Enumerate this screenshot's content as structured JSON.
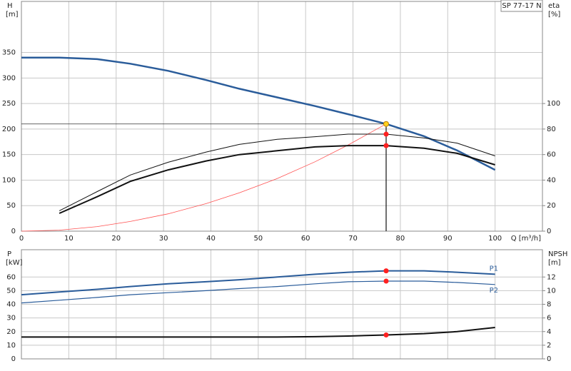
{
  "chart_data": [
    {
      "type": "line",
      "model": "SP 77-17 N",
      "y_label": "H",
      "y_unit": "[m]",
      "y2_label": "eta",
      "y2_unit": "[%]",
      "x_label": "Q [m³/h]",
      "xlim": [
        0,
        110
      ],
      "xticks": [
        0,
        10,
        20,
        30,
        40,
        50,
        60,
        70,
        80,
        90,
        100
      ],
      "xtick_labels": true,
      "ylim": [
        0,
        450
      ],
      "yticks": [
        0,
        50,
        100,
        150,
        200,
        250,
        300,
        350
      ],
      "y2lim": [
        0,
        180
      ],
      "y2ticks": [
        0,
        20,
        40,
        60,
        80,
        100
      ],
      "grid": true,
      "highlight_x": 77,
      "series": [
        {
          "color": "#2a5c9a",
          "width": 2.5,
          "axis": "y",
          "marker": "#ffd21f",
          "guides": true,
          "x": [
            0,
            8,
            16,
            23,
            31,
            39,
            46,
            54,
            62,
            69,
            77,
            85,
            92,
            100
          ],
          "values": [
            340,
            340,
            337,
            328,
            314,
            296,
            279,
            262,
            245,
            229,
            210,
            186,
            158,
            120
          ]
        },
        {
          "color": "#ff5050",
          "width": 0.8,
          "axis": "y",
          "x": [
            0,
            8,
            16,
            23,
            31,
            39,
            46,
            54,
            62,
            69,
            77
          ],
          "values": [
            0,
            2,
            9,
            19,
            34,
            54,
            75,
            103,
            136,
            169,
            210
          ]
        },
        {
          "color": "#111111",
          "width": 1,
          "axis": "y2",
          "marker": "#ff2020",
          "x": [
            8,
            16,
            23,
            31,
            39,
            46,
            54,
            62,
            69,
            77,
            85,
            92,
            100
          ],
          "values": [
            16,
            31,
            44,
            54,
            62,
            68,
            72,
            74,
            76,
            76,
            73,
            69,
            59
          ]
        },
        {
          "color": "#111111",
          "width": 2,
          "axis": "y2",
          "marker": "#ff2020",
          "x": [
            8,
            16,
            23,
            31,
            39,
            46,
            54,
            62,
            69,
            77,
            85,
            92,
            100
          ],
          "values": [
            14,
            27,
            39,
            48,
            55,
            60,
            63,
            66,
            67,
            67,
            65,
            61,
            52
          ]
        }
      ]
    },
    {
      "type": "line",
      "y_label": "P",
      "y_unit": "[kW]",
      "y2_label": "NPSH",
      "y2_unit": "[m]",
      "xlim": [
        0,
        110
      ],
      "xticks": [
        0,
        10,
        20,
        30,
        40,
        50,
        60,
        70,
        80,
        90,
        100
      ],
      "xtick_labels": false,
      "ylim": [
        0,
        80
      ],
      "yticks": [
        0,
        10,
        20,
        30,
        40,
        50,
        60
      ],
      "y2lim": [
        0,
        16
      ],
      "y2ticks": [
        0,
        2,
        4,
        6,
        8,
        10,
        12
      ],
      "grid": true,
      "highlight_x": 77,
      "series": [
        {
          "name": "P1",
          "color": "#2a5c9a",
          "width": 2,
          "axis": "y",
          "marker": "#ff2020",
          "x": [
            0,
            8,
            16,
            23,
            31,
            39,
            46,
            54,
            62,
            69,
            77,
            85,
            92,
            100
          ],
          "values": [
            47,
            49,
            51,
            53,
            55,
            56.5,
            58,
            60,
            62,
            63.5,
            64.5,
            64.5,
            63.5,
            62
          ]
        },
        {
          "name": "P2",
          "color": "#2a5c9a",
          "width": 1.2,
          "axis": "y",
          "marker": "#ff2020",
          "x": [
            0,
            8,
            16,
            23,
            31,
            39,
            46,
            54,
            62,
            69,
            77,
            85,
            92,
            100
          ],
          "values": [
            41,
            43,
            45,
            47,
            48.5,
            50,
            51.5,
            53,
            55,
            56.5,
            57,
            57,
            56,
            54.5
          ]
        },
        {
          "color": "#111111",
          "width": 2,
          "axis": "y2",
          "marker": "#ff2020",
          "x": [
            0,
            8,
            16,
            23,
            31,
            39,
            46,
            54,
            62,
            69,
            77,
            85,
            92,
            100
          ],
          "values": [
            3.2,
            3.2,
            3.2,
            3.2,
            3.2,
            3.2,
            3.2,
            3.2,
            3.25,
            3.35,
            3.5,
            3.7,
            4.0,
            4.6
          ]
        }
      ]
    }
  ]
}
